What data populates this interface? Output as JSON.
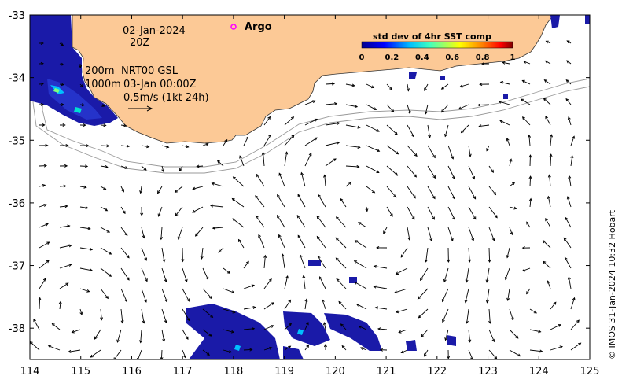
{
  "map": {
    "x_ticks": [
      "114",
      "115",
      "116",
      "117",
      "118",
      "119",
      "120",
      "121",
      "122",
      "123",
      "124",
      "125"
    ],
    "y_ticks": [
      "-33",
      "-34",
      "-35",
      "-36",
      "-37",
      "-38"
    ],
    "x_range": [
      114,
      125
    ],
    "y_range": [
      -38.5,
      -33
    ],
    "date_label": "02-Jan-2024",
    "time_label": "20Z",
    "argo_label": "Argo",
    "contour_label_200": "200m",
    "contour_label_1000": "1000m",
    "current_product": "NRT00 GSL",
    "current_time": "03-Jan 00:00Z",
    "scale_label": "0.5m/s (1kt 24h)",
    "colorbar": {
      "title": "std dev of 4hr SST comp",
      "ticks": [
        "0",
        "0.2",
        "0.4",
        "0.6",
        "0.8",
        "1"
      ],
      "range": [
        0,
        1
      ]
    },
    "credit": "© IMOS 31-Jan-2024 10:32 Hobart",
    "colors": {
      "land": "#fcc996",
      "ocean": "#ffffff",
      "sst_low": "#1a1aa8",
      "argo_marker": "#ff00ff"
    }
  }
}
